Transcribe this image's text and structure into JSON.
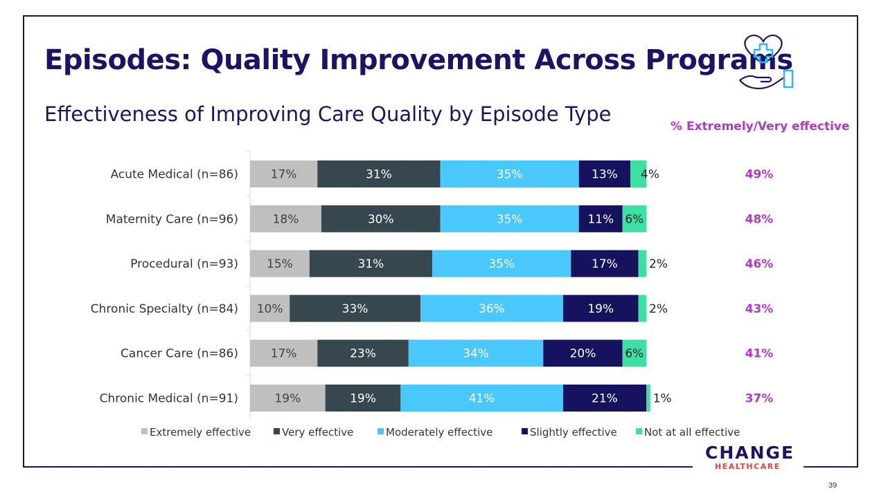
{
  "slide": {
    "title": "Episodes: Quality Improvement Across Programs",
    "subtitle": "Effectiveness of Improving Care Quality by Episode Type",
    "effectiveness_header": "% Extremely/Very effective",
    "page_number": "39",
    "logo_line1": "CHANGE",
    "logo_line2": "HEALTHCARE",
    "icon": "heart-hand-medical-icon"
  },
  "colors": {
    "frame": "#1b1464",
    "title": "#1b1464",
    "accent_purple": "#b03ac8",
    "logo_red": "#e8443a"
  },
  "chart_data": {
    "type": "bar",
    "orientation": "horizontal",
    "stacked": true,
    "categories": [
      "Acute Medical (n=86)",
      "Maternity Care (n=96)",
      "Procedural (n=93)",
      "Chronic Specialty (n=84)",
      "Cancer Care (n=86)",
      "Chronic Medical (n=91)"
    ],
    "series": [
      {
        "name": "Extremely effective",
        "color": "#bfbfbf",
        "label_color": "#404040",
        "values": [
          17,
          18,
          15,
          10,
          17,
          19
        ]
      },
      {
        "name": "Very effective",
        "color": "#37474f",
        "label_color": "#ffffff",
        "values": [
          31,
          30,
          31,
          33,
          23,
          19
        ]
      },
      {
        "name": "Moderately effective",
        "color": "#4bc8fb",
        "label_color": "#ffffff",
        "values": [
          35,
          35,
          35,
          36,
          34,
          41
        ]
      },
      {
        "name": "Slightly effective",
        "color": "#16135e",
        "label_color": "#ffffff",
        "values": [
          13,
          11,
          17,
          19,
          20,
          21
        ]
      },
      {
        "name": "Not at all effective",
        "color": "#3ee0a2",
        "label_color": "#222222",
        "values": [
          4,
          6,
          2,
          2,
          6,
          1
        ]
      }
    ],
    "summary_values": [
      "49%",
      "48%",
      "46%",
      "43%",
      "41%",
      "37%"
    ],
    "value_suffix": "%",
    "legend_position": "bottom",
    "grid": false
  }
}
